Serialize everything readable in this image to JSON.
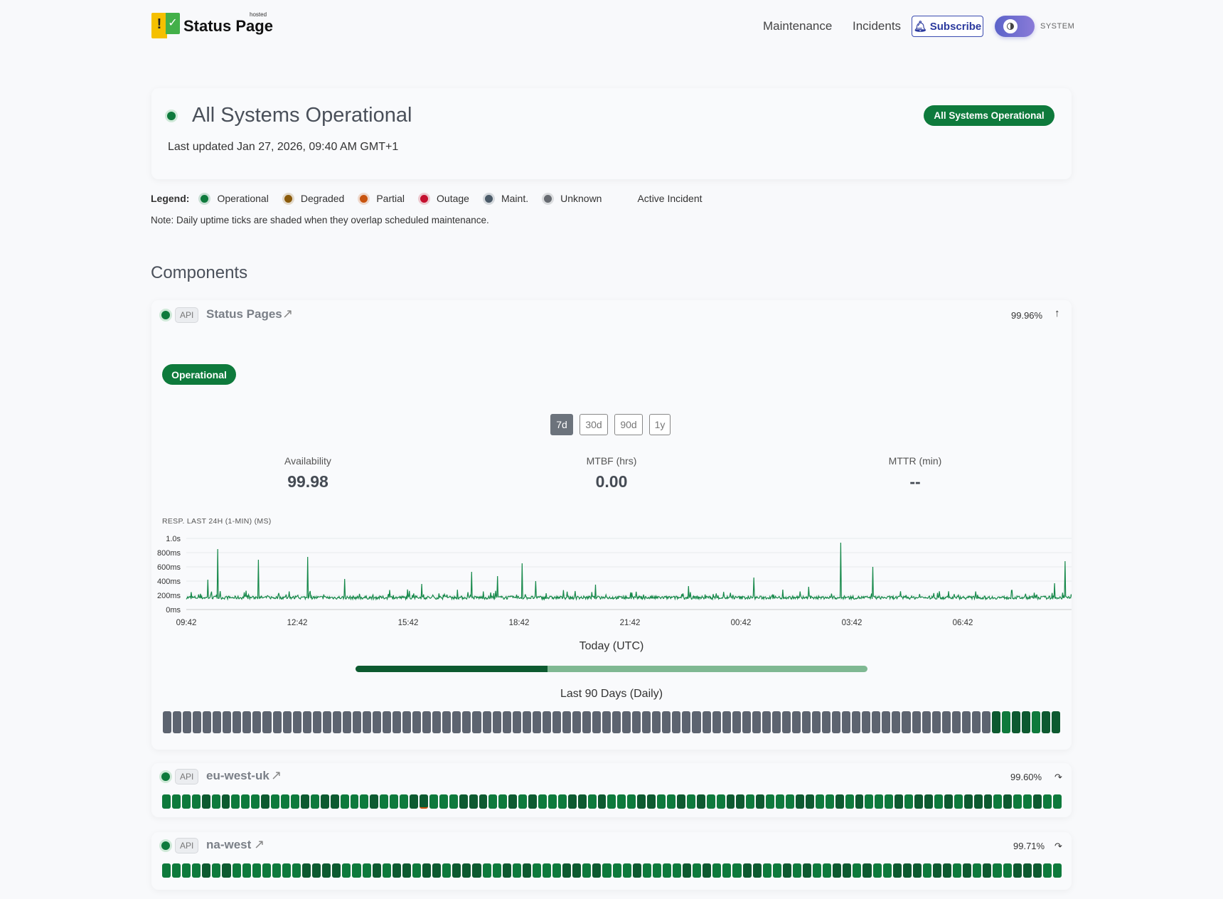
{
  "header": {
    "logo_text": "Status Page",
    "logo_sub": "hosted",
    "nav": [
      "Maintenance",
      "Incidents"
    ],
    "subscribe": "Subscribe",
    "theme_label": "SYSTEM"
  },
  "hero": {
    "title": "All Systems Operational",
    "updated": "Last updated Jan 27, 2026, 09:40 AM GMT+1",
    "badge": "All Systems Operational"
  },
  "legend": {
    "label": "Legend:",
    "items": [
      {
        "label": "Operational",
        "color": "#0e7a3c"
      },
      {
        "label": "Degraded",
        "color": "#8a5a0a"
      },
      {
        "label": "Partial",
        "color": "#c8540f"
      },
      {
        "label": "Outage",
        "color": "#c4102f"
      },
      {
        "label": "Maint.",
        "color": "#4a5a68"
      },
      {
        "label": "Unknown",
        "color": "#666a70"
      }
    ],
    "active_incident": "Active Incident",
    "note": "Note: Daily uptime ticks are shaded when they overlap scheduled maintenance."
  },
  "components_title": "Components",
  "colors": {
    "operational": "#0e7a3c",
    "operational_dark": "#0d5a30",
    "unknown": "#5d6470",
    "partial": "#c8540f"
  },
  "components": [
    {
      "tag": "API",
      "name": "Status Pages",
      "uptime": "99.96%",
      "status": "Operational",
      "ranges": [
        "7d",
        "30d",
        "90d",
        "1y"
      ],
      "active_range": "7d",
      "metrics": [
        {
          "label": "Availability",
          "value": "99.98"
        },
        {
          "label": "MTBF (hrs)",
          "value": "0.00"
        },
        {
          "label": "MTTR (min)",
          "value": "--"
        }
      ],
      "chart_title": "RESP. LAST 24H (1-MIN) (MS)",
      "today_label": "Today (UTC)",
      "today_progress": 0.375,
      "days_label": "Last 90 Days (Daily)",
      "days": "uuuuuuuuuuuuuuuuuuuuuuuuuuuuuuuuuuuuuuuuuuuuuuuuuuuuuuuuuuuuuuuuuuuuuuuuuuuuuuuuuuudgddgdd"
    },
    {
      "tag": "API",
      "name": "eu-west-uk",
      "uptime": "99.60%",
      "days": "ggggdgdgggdgggdgddgggdgggdpgggdddggdgdgggddgdgggddggdgdggddgdgggddggdgdgggdgddgdgdddgdggdgg"
    },
    {
      "tag": "API",
      "name": "na-west",
      "uptime": "99.71%",
      "days": "ggggdgdgggggggddddgggdgddgddgdddggdgdgggddgdgggdggggdgdgggddggdgdggddgdggdddgddgdgdggdddgg"
    }
  ],
  "chart_data": {
    "type": "line",
    "title": "RESP. LAST 24H (1-MIN) (MS)",
    "ylim": [
      0,
      1000
    ],
    "yticks": [
      "0ms",
      "200ms",
      "400ms",
      "600ms",
      "800ms",
      "1.0s"
    ],
    "xticks": [
      "09:42",
      "12:42",
      "15:42",
      "18:42",
      "21:42",
      "00:42",
      "03:42",
      "06:42"
    ],
    "baseline_ms": 170,
    "peaks": [
      [
        "10:17",
        420
      ],
      [
        "10:33",
        850
      ],
      [
        "11:39",
        700
      ],
      [
        "12:59",
        740
      ],
      [
        "13:59",
        430
      ],
      [
        "16:04",
        360
      ],
      [
        "17:25",
        530
      ],
      [
        "18:07",
        470
      ],
      [
        "18:47",
        650
      ],
      [
        "19:09",
        400
      ],
      [
        "20:46",
        350
      ],
      [
        "23:17",
        330
      ],
      [
        "01:03",
        450
      ],
      [
        "02:32",
        320
      ],
      [
        "03:24",
        940
      ],
      [
        "04:16",
        600
      ],
      [
        "09:11",
        370
      ],
      [
        "09:28",
        680
      ]
    ]
  }
}
